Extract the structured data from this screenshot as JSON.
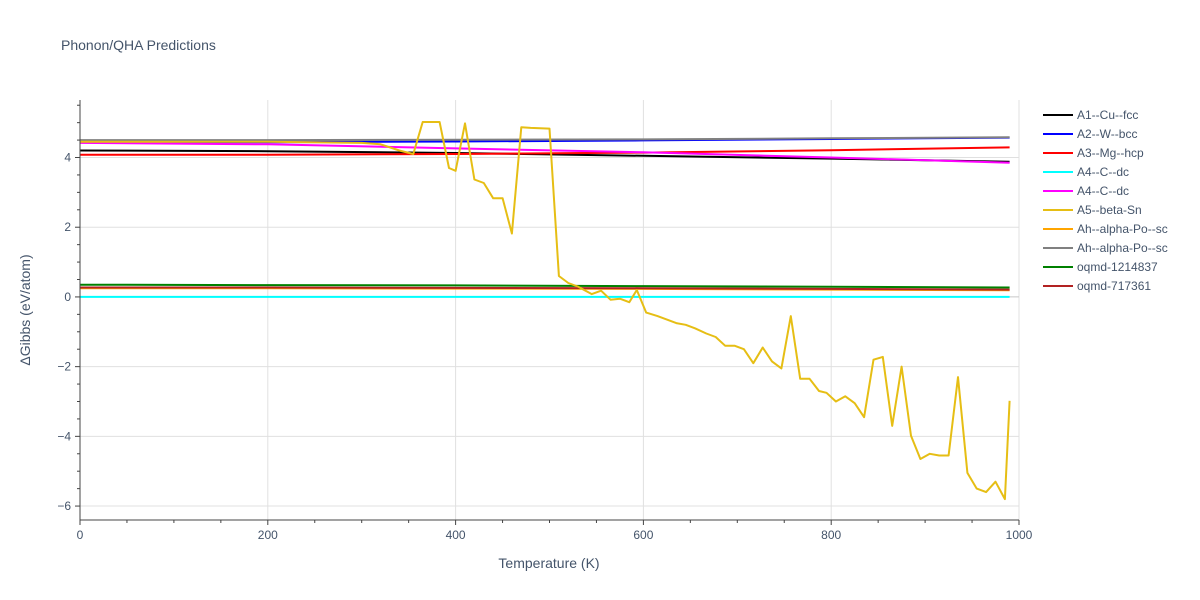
{
  "chart_data": {
    "type": "line",
    "title": "Phonon/QHA Predictions",
    "xlabel": "Temperature (K)",
    "ylabel": "ΔGibbs (eV/atom)",
    "xlim": [
      0,
      1000
    ],
    "ylim": [
      -6.4,
      5.65
    ],
    "xticks": [
      0,
      200,
      400,
      600,
      800,
      1000
    ],
    "yticks": [
      -6,
      -4,
      -2,
      0,
      2,
      4
    ],
    "grid": true,
    "legend_position": "right",
    "series": [
      {
        "name": "A1--Cu--fcc",
        "color": "#000000",
        "x": [
          0,
          200,
          400,
          600,
          800,
          990
        ],
        "y": [
          4.2,
          4.18,
          4.13,
          4.05,
          3.97,
          3.88
        ]
      },
      {
        "name": "A2--W--bcc",
        "color": "#0000ff",
        "x": [
          0,
          200,
          400,
          600,
          800,
          990
        ],
        "y": [
          4.43,
          4.44,
          4.46,
          4.49,
          4.53,
          4.57
        ]
      },
      {
        "name": "A3--Mg--hcp",
        "color": "#ff0000",
        "x": [
          0,
          200,
          400,
          600,
          800,
          990
        ],
        "y": [
          4.08,
          4.08,
          4.1,
          4.14,
          4.21,
          4.29
        ]
      },
      {
        "name": "A4--C--dc",
        "color": "#00ffff",
        "x": [
          0,
          200,
          400,
          600,
          800,
          990
        ],
        "y": [
          0.0,
          0.0,
          0.0,
          0.0,
          0.0,
          0.0
        ]
      },
      {
        "name": "A4--C--dc",
        "color": "#ff00ff",
        "x": [
          0,
          200,
          400,
          600,
          800,
          990
        ],
        "y": [
          4.42,
          4.38,
          4.26,
          4.15,
          4.0,
          3.85
        ]
      },
      {
        "name": "A5--beta-Sn",
        "color": "#e6be14",
        "x": [
          0,
          100,
          200,
          300,
          320,
          340,
          355,
          365,
          383,
          393,
          400,
          410,
          420,
          430,
          440,
          450,
          460,
          470,
          480,
          500,
          510,
          520,
          530,
          545,
          555,
          565,
          575,
          585,
          593,
          603,
          615,
          625,
          635,
          645,
          655,
          667,
          677,
          687,
          697,
          707,
          717,
          727,
          737,
          747,
          757,
          767,
          777,
          787,
          795,
          805,
          815,
          825,
          835,
          845,
          855,
          865,
          875,
          885,
          895,
          905,
          915,
          925,
          935,
          945,
          955,
          965,
          975,
          985,
          990
        ],
        "y": [
          4.45,
          4.45,
          4.45,
          4.42,
          4.38,
          4.2,
          4.1,
          5.02,
          5.02,
          3.7,
          3.62,
          4.98,
          3.37,
          3.27,
          2.83,
          2.83,
          1.82,
          4.87,
          4.85,
          4.83,
          0.6,
          0.4,
          0.3,
          0.08,
          0.18,
          -0.08,
          -0.05,
          -0.15,
          0.2,
          -0.45,
          -0.55,
          -0.65,
          -0.75,
          -0.8,
          -0.9,
          -1.05,
          -1.15,
          -1.4,
          -1.4,
          -1.5,
          -1.9,
          -1.45,
          -1.85,
          -2.05,
          -0.55,
          -2.35,
          -2.35,
          -2.7,
          -2.75,
          -3.0,
          -2.85,
          -3.05,
          -3.45,
          -1.8,
          -1.72,
          -3.7,
          -2.0,
          -3.98,
          -4.65,
          -4.5,
          -4.55,
          -4.55,
          -2.3,
          -5.05,
          -5.5,
          -5.6,
          -5.3,
          -5.8,
          -2.98
        ]
      },
      {
        "name": "Ah--alpha-Po--sc",
        "color": "#ffa500",
        "x": [
          0,
          200,
          400,
          600,
          800,
          990
        ],
        "y": [
          0.25,
          0.25,
          0.24,
          0.23,
          0.21,
          0.19
        ]
      },
      {
        "name": "Ah--alpha-Po--sc",
        "color": "#808080",
        "x": [
          0,
          200,
          400,
          600,
          800,
          990
        ],
        "y": [
          4.5,
          4.5,
          4.51,
          4.52,
          4.55,
          4.58
        ]
      },
      {
        "name": "oqmd-1214837",
        "color": "#008000",
        "x": [
          0,
          200,
          400,
          600,
          800,
          990
        ],
        "y": [
          0.35,
          0.34,
          0.33,
          0.31,
          0.29,
          0.27
        ]
      },
      {
        "name": "oqmd-717361",
        "color": "#b22222",
        "x": [
          0,
          200,
          400,
          600,
          800,
          990
        ],
        "y": [
          0.27,
          0.27,
          0.26,
          0.25,
          0.23,
          0.21
        ]
      }
    ]
  }
}
